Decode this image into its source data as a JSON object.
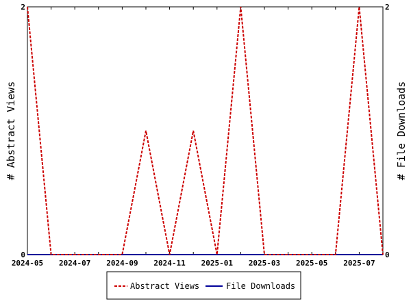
{
  "chart_data": {
    "type": "line",
    "xlabel": "",
    "ylabel_left": "# Abstract Views",
    "ylabel_right": "# File Downloads",
    "x": [
      "2024-05",
      "2024-06",
      "2024-07",
      "2024-08",
      "2024-09",
      "2024-10",
      "2024-11",
      "2024-12",
      "2025-01",
      "2025-02",
      "2025-03",
      "2025-04",
      "2025-05",
      "2025-06",
      "2025-07",
      "2025-08"
    ],
    "x_tick_labels": [
      "2024-05",
      "2024-07",
      "2024-09",
      "2024-11",
      "2025-01",
      "2025-03",
      "2025-05",
      "2025-07"
    ],
    "ylim_left": [
      0,
      2
    ],
    "ylim_right": [
      0,
      2
    ],
    "y_ticks_left": [
      "0",
      "2"
    ],
    "y_ticks_right": [
      "0",
      "2"
    ],
    "grid": false,
    "legend_placement": "bottom-center",
    "series": [
      {
        "name": "Abstract Views",
        "axis": "left",
        "color": "#cc0000",
        "style": "dashed",
        "values": [
          2,
          0,
          0,
          0,
          0,
          1,
          0,
          1,
          0,
          2,
          0,
          0,
          0,
          0,
          2,
          0
        ]
      },
      {
        "name": "File Downloads",
        "axis": "right",
        "color": "#000099",
        "style": "solid",
        "values": [
          0,
          0,
          0,
          0,
          0,
          0,
          0,
          0,
          0,
          0,
          0,
          0,
          0,
          0,
          0,
          0
        ]
      }
    ]
  }
}
